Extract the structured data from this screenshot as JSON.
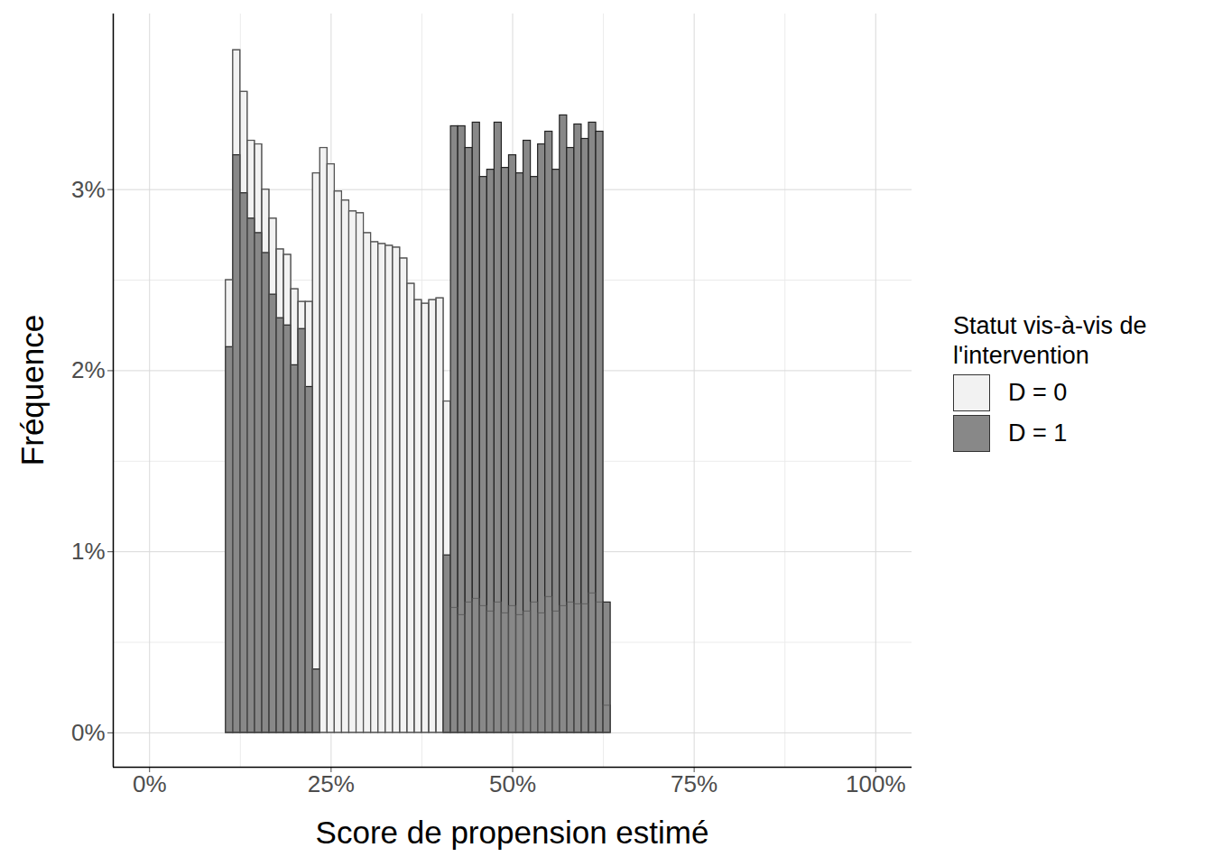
{
  "chart_data": {
    "type": "histogram",
    "x_label": "Score de propension estimé",
    "y_label": "Fréquence",
    "legend_title": "Statut vis-à-vis de l'intervention",
    "legend": "right",
    "grid": true,
    "bins": [
      10.5,
      11.5,
      12.5,
      13.5,
      14.5,
      15.5,
      16.5,
      17.5,
      18.5,
      19.5,
      20.5,
      21.5,
      22.5,
      23.5,
      24.5,
      25.5,
      26.5,
      27.5,
      28.5,
      29.5,
      30.5,
      31.5,
      32.5,
      33.5,
      34.5,
      35.5,
      36.5,
      37.5,
      38.5,
      39.5,
      40.5,
      41.5,
      42.5,
      43.5,
      44.5,
      45.5,
      46.5,
      47.5,
      48.5,
      49.5,
      50.5,
      51.5,
      52.5,
      53.5,
      54.5,
      55.5,
      56.5,
      57.5,
      58.5,
      59.5,
      60.5,
      61.5,
      62.5,
      63.5
    ],
    "series": [
      {
        "name": "D = 0",
        "color": "#f2f2f2",
        "values": [
          2.5,
          3.77,
          3.54,
          3.27,
          3.25,
          3.0,
          2.84,
          2.67,
          2.64,
          2.45,
          2.38,
          2.38,
          3.09,
          3.23,
          3.14,
          2.99,
          2.94,
          2.88,
          2.87,
          2.76,
          2.71,
          2.7,
          2.69,
          2.68,
          2.62,
          2.48,
          2.39,
          2.37,
          2.39,
          2.4,
          1.83,
          0.69,
          0.65,
          0.72,
          0.74,
          0.7,
          0.67,
          0.72,
          0.66,
          0.7,
          0.65,
          0.67,
          0.72,
          0.66,
          0.75,
          0.67,
          0.7,
          0.72,
          0.71,
          0.71,
          0.77,
          0.72,
          0.15
        ]
      },
      {
        "name": "D = 1",
        "color": "#888888",
        "values": [
          2.13,
          3.19,
          2.98,
          2.84,
          2.76,
          2.65,
          2.42,
          2.29,
          2.25,
          2.03,
          2.23,
          1.91,
          0.35,
          0,
          0,
          0,
          0,
          0,
          0,
          0,
          0,
          0,
          0,
          0,
          0,
          0,
          0,
          0,
          0,
          0,
          0.98,
          3.35,
          3.35,
          3.23,
          3.37,
          3.07,
          3.11,
          3.37,
          3.12,
          3.19,
          3.09,
          3.27,
          3.07,
          3.25,
          3.32,
          3.11,
          3.41,
          3.23,
          3.36,
          3.28,
          3.37,
          3.32,
          0.72
        ]
      }
    ],
    "xlim": [
      -5,
      105
    ],
    "xticks": [
      {
        "value": 0,
        "label": "0%"
      },
      {
        "value": 25,
        "label": "25%"
      },
      {
        "value": 50,
        "label": "50%"
      },
      {
        "value": 75,
        "label": "75%"
      },
      {
        "value": 100,
        "label": "100%"
      }
    ],
    "ylim": [
      -0.19,
      3.97
    ],
    "yticks": [
      {
        "value": 0,
        "label": "0%"
      },
      {
        "value": 1,
        "label": "1%"
      },
      {
        "value": 2,
        "label": "2%"
      },
      {
        "value": 3,
        "label": "3%"
      }
    ]
  }
}
